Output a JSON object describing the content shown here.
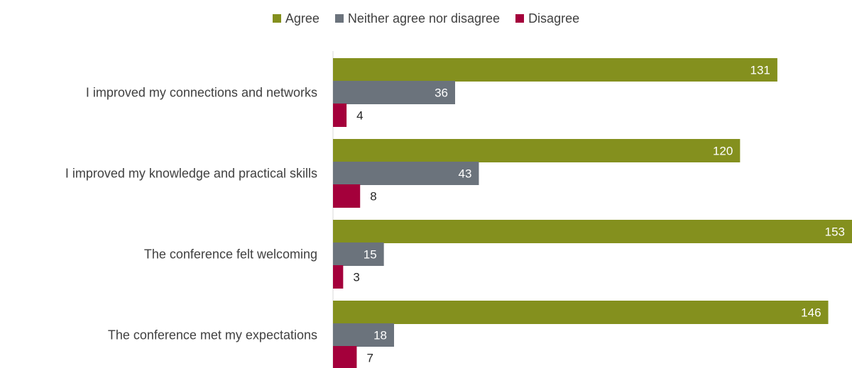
{
  "chart_data": {
    "type": "bar",
    "orientation": "horizontal",
    "categories": [
      "I improved my connections and networks",
      "I improved my knowledge and practical skills",
      "The conference felt welcoming",
      "The conference met my expectations"
    ],
    "series": [
      {
        "name": "Agree",
        "color": "#84901e",
        "values": [
          131,
          120,
          153,
          146
        ]
      },
      {
        "name": "Neither agree nor disagree",
        "color": "#6b737c",
        "values": [
          36,
          43,
          15,
          18
        ]
      },
      {
        "name": "Disagree",
        "color": "#a4003b",
        "values": [
          4,
          8,
          3,
          7
        ]
      }
    ],
    "legend_position": "top",
    "grid": false,
    "xlim": [
      0,
      153
    ]
  }
}
